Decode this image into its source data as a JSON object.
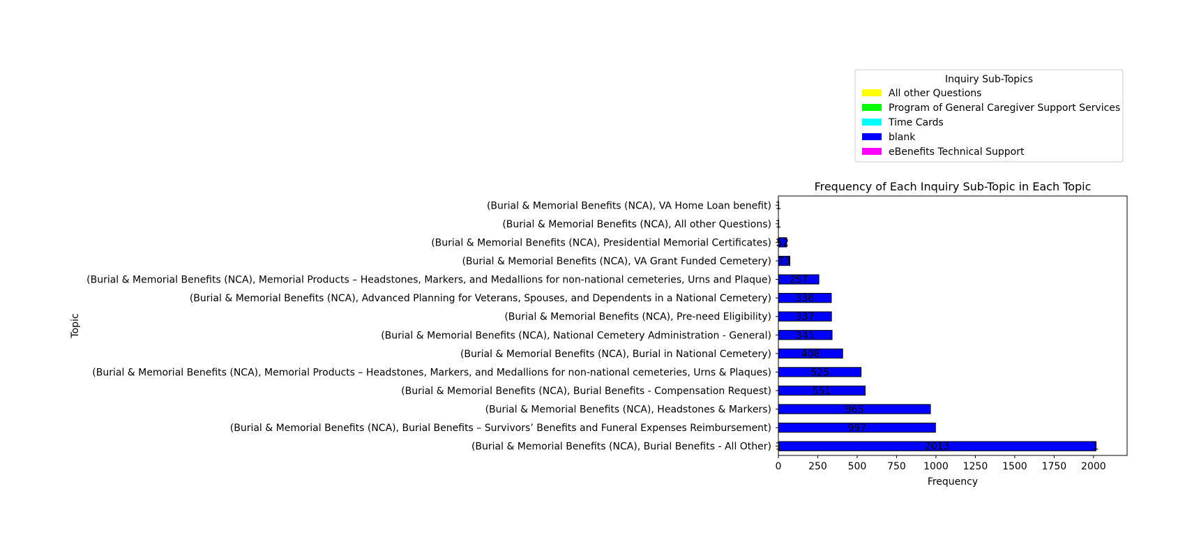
{
  "chart_data": {
    "type": "bar",
    "orientation": "horizontal",
    "stacked": true,
    "title": "Frequency of Each Inquiry Sub-Topic in Each Topic",
    "xlabel": "Frequency",
    "ylabel": "Topic",
    "xlim": [
      0,
      2213
    ],
    "xticks": [
      0,
      250,
      500,
      750,
      1000,
      1250,
      1500,
      1750,
      2000
    ],
    "grid": false,
    "legend": {
      "title": "Inquiry Sub-Topics",
      "placement": "top-right"
    },
    "categories": [
      "(Burial & Memorial Benefits (NCA), Burial Benefits - All Other)",
      "(Burial & Memorial Benefits (NCA), Burial Benefits – Survivors’ Benefits and Funeral Expenses Reimbursement)",
      "(Burial & Memorial Benefits (NCA), Headstones & Markers)",
      "(Burial & Memorial Benefits (NCA), Burial Benefits - Compensation Request)",
      "(Burial & Memorial Benefits (NCA), Memorial Products – Headstones, Markers, and Medallions for non-national cemeteries, Urns & Plaques)",
      "(Burial & Memorial Benefits (NCA), Burial in National Cemetery)",
      "(Burial & Memorial Benefits (NCA), National Cemetery Administration - General)",
      "(Burial & Memorial Benefits (NCA), Pre-need Eligibility)",
      "(Burial & Memorial Benefits (NCA), Advanced Planning for Veterans, Spouses, and Dependents in a National Cemetery)",
      "(Burial & Memorial Benefits (NCA), Memorial Products – Headstones, Markers, and Medallions for non-national cemeteries, Urns and Plaque)",
      "(Burial & Memorial Benefits (NCA), VA Grant Funded Cemetery)",
      "(Burial & Memorial Benefits (NCA), Presidential Memorial Certificates)",
      "(Burial & Memorial Benefits (NCA), All other Questions)",
      "(Burial & Memorial Benefits (NCA), VA Home Loan benefit)"
    ],
    "series": [
      {
        "name": "All other Questions",
        "color": "#ffff00",
        "values": [
          1,
          0,
          0,
          0,
          0,
          0,
          0,
          0,
          0,
          0,
          0,
          1,
          1,
          0
        ],
        "labels": [
          "1",
          "",
          "",
          "",
          "",
          "",
          "",
          "",
          "",
          "",
          "",
          "1",
          "1",
          ""
        ]
      },
      {
        "name": "Program of General Caregiver Support Services",
        "color": "#00ff00",
        "values": [
          0,
          0,
          0,
          0,
          0,
          0,
          0,
          0,
          0,
          0,
          0,
          0,
          0,
          0
        ],
        "labels": [
          "",
          "",
          "",
          "",
          "",
          "",
          "",
          "",
          "",
          "",
          "",
          "",
          "",
          ""
        ]
      },
      {
        "name": "Time Cards",
        "color": "#00ffff",
        "values": [
          0,
          0,
          0,
          0,
          0,
          0,
          0,
          0,
          0,
          0,
          0,
          0,
          0,
          1
        ],
        "labels": [
          "",
          "",
          "",
          "",
          "",
          "",
          "",
          "",
          "",
          "",
          "",
          "",
          "",
          "1"
        ]
      },
      {
        "name": "blank",
        "color": "#0000ff",
        "values": [
          2013,
          997,
          965,
          551,
          525,
          408,
          341,
          337,
          336,
          257,
          73,
          52,
          0,
          0
        ],
        "labels": [
          "2013",
          "997",
          "965",
          "551",
          "525",
          "408",
          "341",
          "337",
          "336",
          "257",
          "73",
          "52",
          "",
          ""
        ]
      },
      {
        "name": "eBenefits Technical Support",
        "color": "#ff00ff",
        "values": [
          1,
          0,
          0,
          0,
          0,
          0,
          0,
          0,
          0,
          0,
          0,
          0,
          0,
          0
        ],
        "labels": [
          "1",
          "",
          "",
          "",
          "",
          "",
          "",
          "",
          "",
          "",
          "",
          "",
          "",
          ""
        ]
      }
    ]
  }
}
